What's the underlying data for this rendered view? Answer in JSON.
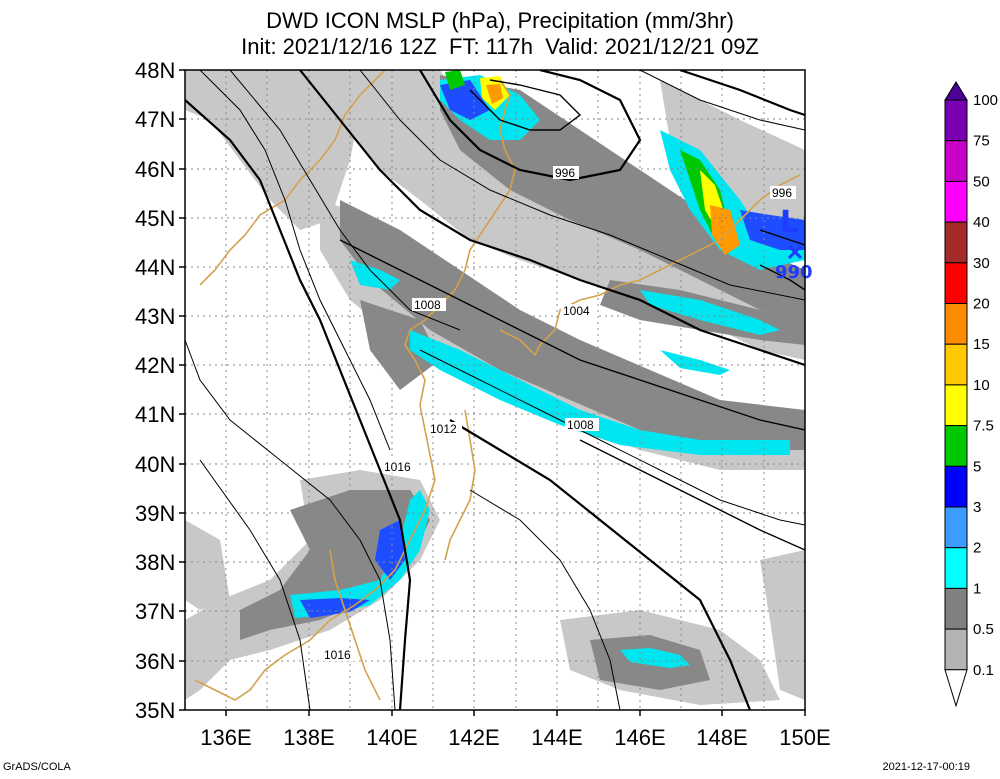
{
  "title_line1": "DWD ICON MSLP (hPa), Precipitation (mm/3hr)",
  "title_line2": "Init: 2021/12/16 12Z  FT: 117h  Valid: 2021/12/21 09Z",
  "footer_left": "GrADS/COLA",
  "footer_right": "2021-12-17-00:19",
  "lat_labels": [
    "48N",
    "47N",
    "46N",
    "45N",
    "44N",
    "43N",
    "42N",
    "41N",
    "40N",
    "39N",
    "38N",
    "37N",
    "36N",
    "35N"
  ],
  "lon_labels": [
    "136E",
    "138E",
    "140E",
    "142E",
    "144E",
    "146E",
    "148E",
    "150E"
  ],
  "contour_labels": [
    "996",
    "996",
    "1004",
    "1008",
    "1008",
    "1012",
    "1016",
    "1016"
  ],
  "low_symbol": "L",
  "low_value": "990",
  "colorbar": {
    "labels": [
      "100",
      "75",
      "50",
      "40",
      "30",
      "20",
      "15",
      "10",
      "7.5",
      "5",
      "3",
      "2",
      "1",
      "0.5",
      "0.1"
    ],
    "colors": [
      "#4b0096",
      "#7a00b4",
      "#c800c8",
      "#ff00ff",
      "#a52a2a",
      "#ff0000",
      "#ff8c00",
      "#ffc800",
      "#ffff00",
      "#00c800",
      "#0000ff",
      "#3c9cff",
      "#00ffff",
      "#808080",
      "#b4b4b4",
      "#ffffff"
    ]
  },
  "map": {
    "lon_range": [
      135,
      150
    ],
    "lat_range": [
      35,
      48
    ],
    "grid": true
  },
  "colors": {
    "coast": "#d2a24c",
    "precip_light": "#c8c8c8",
    "precip_mid": "#888888",
    "precip_cyan": "#00ffff",
    "precip_blue": "#0000ff",
    "low_marker": "#1e3cff"
  }
}
